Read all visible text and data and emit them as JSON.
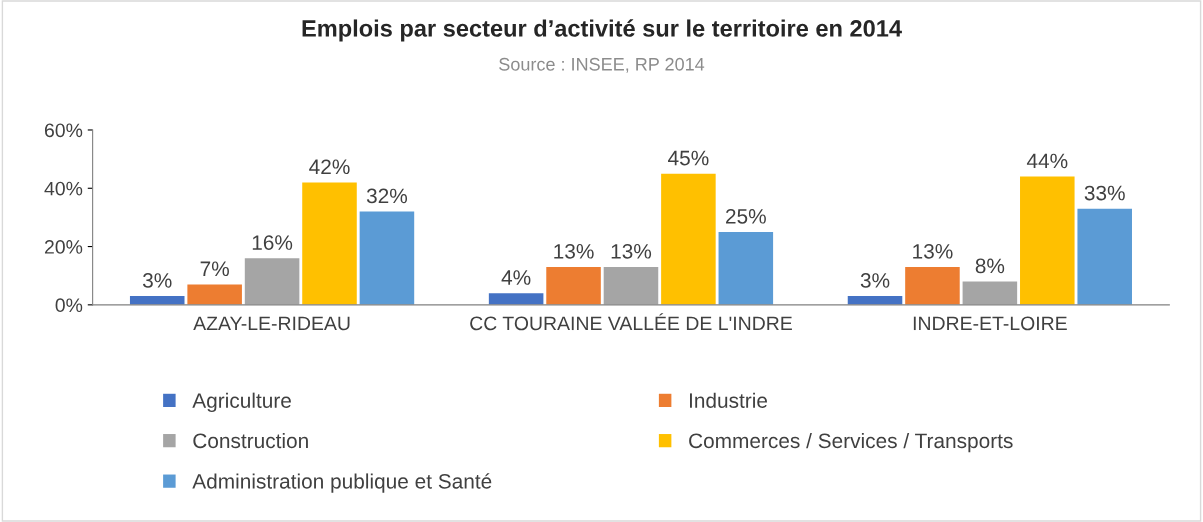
{
  "chart_data": {
    "type": "bar",
    "title": "Emplois par secteur d’activité sur le territoire en 2014",
    "subtitle": "Source : INSEE, RP 2014",
    "categories": [
      "AZAY-LE-RIDEAU",
      "CC TOURAINE VALLÉE DE L'INDRE",
      "INDRE-ET-LOIRE"
    ],
    "series": [
      {
        "name": "Agriculture",
        "color": "#4472c4",
        "values": [
          3,
          4,
          3
        ],
        "value_labels": [
          "3%",
          "4%",
          "3%"
        ]
      },
      {
        "name": "Industrie",
        "color": "#ed7d31",
        "values": [
          7,
          13,
          13
        ],
        "value_labels": [
          "7%",
          "13%",
          "13%"
        ]
      },
      {
        "name": "Construction",
        "color": "#a5a5a5",
        "values": [
          16,
          13,
          8
        ],
        "value_labels": [
          "16%",
          "13%",
          "8%"
        ]
      },
      {
        "name": "Commerces / Services / Transports",
        "color": "#ffc000",
        "values": [
          42,
          45,
          44
        ],
        "value_labels": [
          "42%",
          "45%",
          "44%"
        ]
      },
      {
        "name": "Administration publique et Santé",
        "color": "#5b9bd5",
        "values": [
          32,
          25,
          33
        ],
        "value_labels": [
          "32%",
          "25%",
          "33%"
        ]
      }
    ],
    "ylim": [
      0,
      60
    ],
    "yticks": [
      {
        "value": 0,
        "label": "0%"
      },
      {
        "value": 20,
        "label": "20%"
      },
      {
        "value": 40,
        "label": "40%"
      },
      {
        "value": 60,
        "label": "60%"
      }
    ],
    "grid": false,
    "legend": "bottom"
  }
}
